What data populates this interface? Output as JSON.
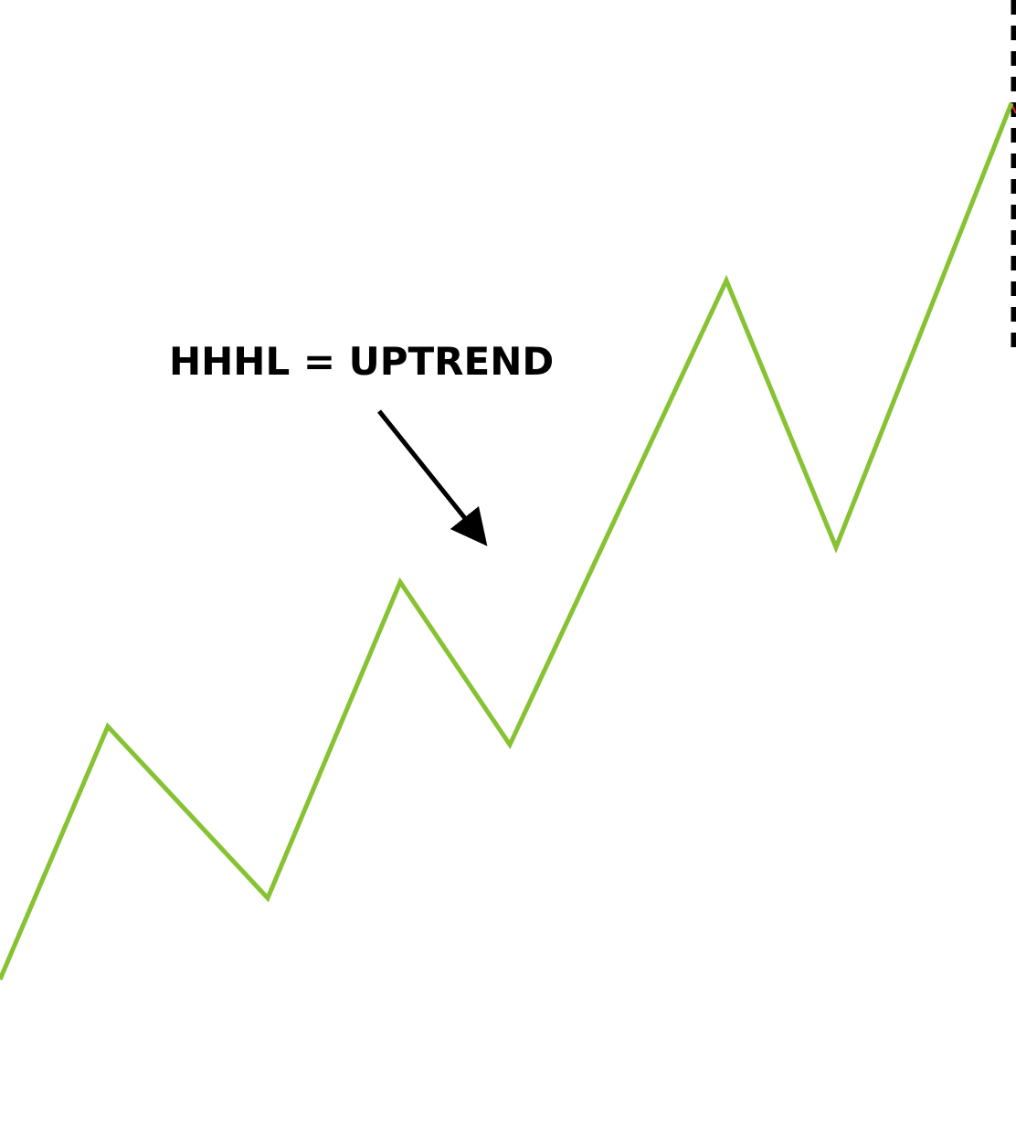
{
  "annotation": {
    "text": "HHHL = UPTREND"
  }
}
